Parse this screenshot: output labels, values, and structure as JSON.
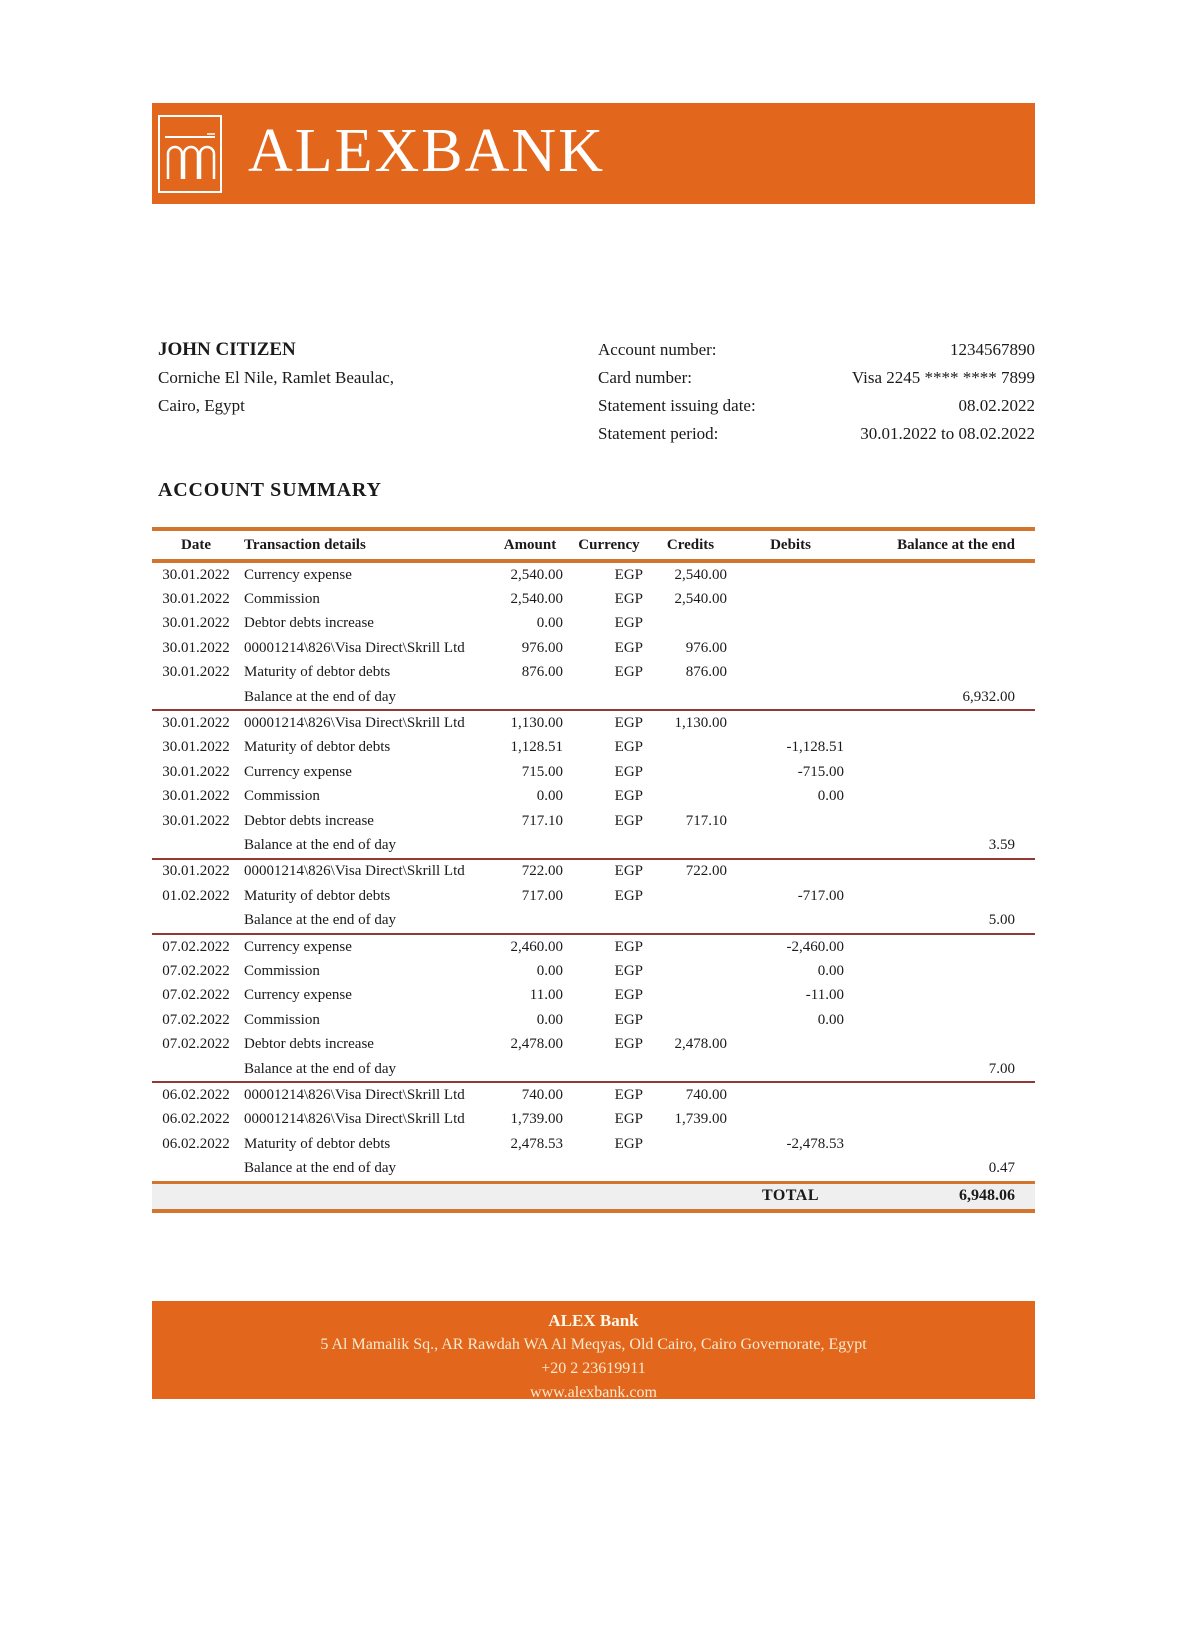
{
  "colors": {
    "brand_orange": "#e2661c",
    "table_line_orange": "#d2752e",
    "group_separator_red": "#953735",
    "total_row_bg": "#efefef",
    "footer_text": "#f7ecd2"
  },
  "header": {
    "wordmark": "ALEXBANK",
    "logo_icon": "arches-bridge-icon"
  },
  "customer": {
    "name": "JOHN CITIZEN",
    "address_line1": "Corniche El Nile, Ramlet Beaulac,",
    "address_line2": "Cairo, Egypt"
  },
  "account_info": [
    {
      "label": "Account number:",
      "value": "1234567890"
    },
    {
      "label": "Card number:",
      "value": "Visa 2245 **** **** 7899"
    },
    {
      "label": "Statement issuing date:",
      "value": "08.02.2022"
    },
    {
      "label": "Statement period:",
      "value": "30.01.2022 to 08.02.2022"
    }
  ],
  "section_title": "ACCOUNT SUMMARY",
  "table": {
    "columns": [
      "Date",
      "Transaction details",
      "Amount",
      "Currency",
      "Credits",
      "Debits",
      "Balance at the end"
    ],
    "balance_label": "Balance at the end of day",
    "groups": [
      {
        "rows": [
          {
            "date": "30.01.2022",
            "details": "Currency expense",
            "amount": "2,540.00",
            "currency": "EGP",
            "credits": "2,540.00",
            "debits": ""
          },
          {
            "date": "30.01.2022",
            "details": "Commission",
            "amount": "2,540.00",
            "currency": "EGP",
            "credits": "2,540.00",
            "debits": ""
          },
          {
            "date": "30.01.2022",
            "details": "Debtor debts increase",
            "amount": "0.00",
            "currency": "EGP",
            "credits": "",
            "debits": ""
          },
          {
            "date": "30.01.2022",
            "details": "00001214\\826\\Visa Direct\\Skrill Ltd",
            "amount": "976.00",
            "currency": "EGP",
            "credits": "976.00",
            "debits": ""
          },
          {
            "date": "30.01.2022",
            "details": "Maturity of debtor debts",
            "amount": "876.00",
            "currency": "EGP",
            "credits": "876.00",
            "debits": ""
          }
        ],
        "end_of_day_balance": "6,932.00"
      },
      {
        "rows": [
          {
            "date": "30.01.2022",
            "details": "00001214\\826\\Visa Direct\\Skrill Ltd",
            "amount": "1,130.00",
            "currency": "EGP",
            "credits": "1,130.00",
            "debits": ""
          },
          {
            "date": "30.01.2022",
            "details": "Maturity of debtor debts",
            "amount": "1,128.51",
            "currency": "EGP",
            "credits": "",
            "debits": "-1,128.51"
          },
          {
            "date": "30.01.2022",
            "details": "Currency expense",
            "amount": "715.00",
            "currency": "EGP",
            "credits": "",
            "debits": "-715.00"
          },
          {
            "date": "30.01.2022",
            "details": "Commission",
            "amount": "0.00",
            "currency": "EGP",
            "credits": "",
            "debits": "0.00"
          },
          {
            "date": "30.01.2022",
            "details": "Debtor debts increase",
            "amount": "717.10",
            "currency": "EGP",
            "credits": "717.10",
            "debits": ""
          }
        ],
        "end_of_day_balance": "3.59"
      },
      {
        "rows": [
          {
            "date": "30.01.2022",
            "details": "00001214\\826\\Visa Direct\\Skrill Ltd",
            "amount": "722.00",
            "currency": "EGP",
            "credits": "722.00",
            "debits": ""
          },
          {
            "date": "01.02.2022",
            "details": "Maturity of debtor debts",
            "amount": "717.00",
            "currency": "EGP",
            "credits": "",
            "debits": "-717.00"
          }
        ],
        "end_of_day_balance": "5.00"
      },
      {
        "rows": [
          {
            "date": "07.02.2022",
            "details": "Currency expense",
            "amount": "2,460.00",
            "currency": "EGP",
            "credits": "",
            "debits": "-2,460.00"
          },
          {
            "date": "07.02.2022",
            "details": "Commission",
            "amount": "0.00",
            "currency": "EGP",
            "credits": "",
            "debits": "0.00"
          },
          {
            "date": "07.02.2022",
            "details": "Currency expense",
            "amount": "11.00",
            "currency": "EGP",
            "credits": "",
            "debits": "-11.00"
          },
          {
            "date": "07.02.2022",
            "details": "Commission",
            "amount": "0.00",
            "currency": "EGP",
            "credits": "",
            "debits": "0.00"
          },
          {
            "date": "07.02.2022",
            "details": "Debtor debts increase",
            "amount": "2,478.00",
            "currency": "EGP",
            "credits": "2,478.00",
            "debits": ""
          }
        ],
        "end_of_day_balance": "7.00"
      },
      {
        "rows": [
          {
            "date": "06.02.2022",
            "details": "00001214\\826\\Visa Direct\\Skrill Ltd",
            "amount": "740.00",
            "currency": "EGP",
            "credits": "740.00",
            "debits": ""
          },
          {
            "date": "06.02.2022",
            "details": "00001214\\826\\Visa Direct\\Skrill Ltd",
            "amount": "1,739.00",
            "currency": "EGP",
            "credits": "1,739.00",
            "debits": ""
          },
          {
            "date": "06.02.2022",
            "details": "Maturity of debtor debts",
            "amount": "2,478.53",
            "currency": "EGP",
            "credits": "",
            "debits": "-2,478.53"
          }
        ],
        "end_of_day_balance": "0.47"
      }
    ],
    "total_label": "TOTAL",
    "total_value": "6,948.06"
  },
  "footer": {
    "bank_name": "ALEX Bank",
    "address": "5 Al Mamalik Sq., AR Rawdah WA Al Meqyas, Old Cairo, Cairo Governorate, Egypt",
    "phone": "+20 2 23619911",
    "website": "www.alexbank.com"
  }
}
